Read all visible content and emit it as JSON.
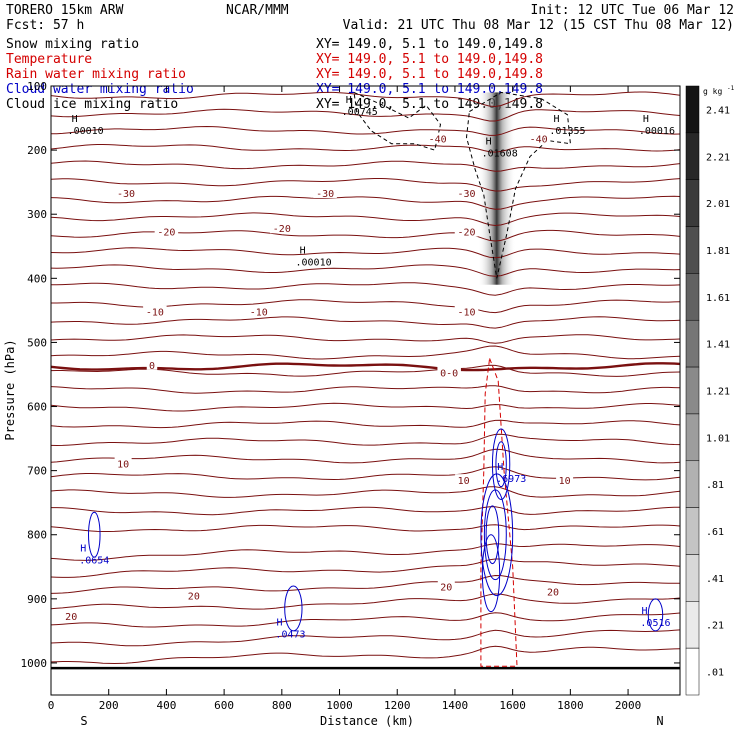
{
  "header": {
    "model": "TORERO  15km ARW",
    "center": "NCAR/MMM",
    "init": "Init: 12 UTC Tue 06 Mar 12",
    "fcst": "Fcst:    57 h",
    "valid": "Valid: 21 UTC Thu 08 Mar 12 (15 CST Thu 08 Mar 12)"
  },
  "fields": [
    {
      "label": "Snow mixing ratio",
      "xy": "XY= 149.0,  5.1 to 149.0,149.8",
      "color": "#000000"
    },
    {
      "label": "Temperature",
      "xy": "XY= 149.0,  5.1 to 149.0,149.8",
      "color": "#d40000"
    },
    {
      "label": "Rain water mixing ratio",
      "xy": "XY= 149.0,  5.1 to 149.0,149.8",
      "color": "#d40000"
    },
    {
      "label": "Cloud water mixing ratio",
      "xy": "XY= 149.0,  5.1 to 149.0,149.8",
      "color": "#0000c8"
    },
    {
      "label": "Cloud ice mixing ratio",
      "xy": "XY= 149.0,  5.1 to 149.0,149.8",
      "color": "#000000"
    }
  ],
  "colors": {
    "temperature": "#7a1010",
    "rain": "#d40000",
    "cloud_water": "#0000c8",
    "ice": "#000000",
    "axis": "#000000"
  },
  "chart_data": {
    "type": "cross-section",
    "xlabel": "Distance (km)",
    "ylabel": "Pressure (hPa)",
    "xlim": [
      0,
      2180
    ],
    "ylim": [
      1050,
      100
    ],
    "x_ticks": [
      0,
      200,
      400,
      600,
      800,
      1000,
      1200,
      1400,
      1600,
      1800,
      2000
    ],
    "y_ticks": [
      100,
      200,
      300,
      400,
      500,
      600,
      700,
      800,
      900,
      1000
    ],
    "left_end_label": "S",
    "right_end_label": "N",
    "colorbar": {
      "unit": "g kg",
      "unit_exp": "-1",
      "ticks": [
        "2.41",
        "2.21",
        "2.01",
        "1.81",
        "1.61",
        "1.41",
        "1.21",
        "1.01",
        ".81",
        ".61",
        ".41",
        ".21",
        ".01"
      ]
    },
    "temperature_labels": [
      {
        "text": "-40",
        "x": 1340,
        "p": 185
      },
      {
        "text": "-40",
        "x": 1690,
        "p": 185
      },
      {
        "text": "-30",
        "x": 260,
        "p": 270
      },
      {
        "text": "-30",
        "x": 950,
        "p": 270
      },
      {
        "text": "-30",
        "x": 1440,
        "p": 270
      },
      {
        "text": "-20",
        "x": 400,
        "p": 330
      },
      {
        "text": "-20",
        "x": 800,
        "p": 325
      },
      {
        "text": "-20",
        "x": 1440,
        "p": 330
      },
      {
        "text": "-10",
        "x": 360,
        "p": 455
      },
      {
        "text": "-10",
        "x": 720,
        "p": 455
      },
      {
        "text": "-10",
        "x": 1440,
        "p": 455
      },
      {
        "text": "0",
        "x": 350,
        "p": 538
      },
      {
        "text": "0-0",
        "x": 1380,
        "p": 550
      },
      {
        "text": "10",
        "x": 250,
        "p": 692
      },
      {
        "text": "10",
        "x": 1430,
        "p": 718
      },
      {
        "text": "10",
        "x": 1780,
        "p": 718
      },
      {
        "text": "20",
        "x": 70,
        "p": 930
      },
      {
        "text": "20",
        "x": 495,
        "p": 898
      },
      {
        "text": "20",
        "x": 1370,
        "p": 884
      },
      {
        "text": "20",
        "x": 1740,
        "p": 892
      }
    ],
    "maxima": [
      {
        "text": ".00010",
        "x": 120,
        "p": 175,
        "color": "ice"
      },
      {
        "text": ".00745",
        "x": 1070,
        "p": 145,
        "color": "ice"
      },
      {
        "text": ".01608",
        "x": 1555,
        "p": 210,
        "color": "ice"
      },
      {
        "text": ".01355",
        "x": 1790,
        "p": 175,
        "color": "ice"
      },
      {
        "text": ".00016",
        "x": 2100,
        "p": 175,
        "color": "ice"
      },
      {
        "text": ".00010",
        "x": 910,
        "p": 380,
        "color": "ice"
      },
      {
        "text": ".6973",
        "x": 1595,
        "p": 718,
        "color": "cloud_water"
      },
      {
        "text": ".0654",
        "x": 150,
        "p": 845,
        "color": "cloud_water"
      },
      {
        "text": ".0473",
        "x": 830,
        "p": 960,
        "color": "cloud_water"
      },
      {
        "text": ".0516",
        "x": 2095,
        "p": 942,
        "color": "cloud_water"
      }
    ],
    "isolines_note": "Temperature isotherms every 10 C (thick 0 C line), snow mixing ratio shaded, cloud water (blue), rain water (red dashed), cloud ice (black dashed)"
  }
}
